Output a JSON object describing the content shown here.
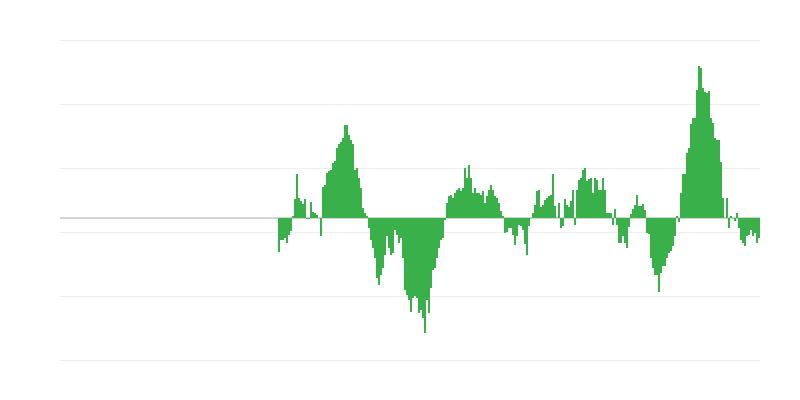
{
  "chart_data": {
    "type": "bar",
    "title": "",
    "xlabel": "",
    "ylabel": "",
    "ylim": [
      -142,
      178
    ],
    "gridlines": [
      178,
      114,
      50,
      -14,
      -78,
      -142
    ],
    "baseline": 0,
    "grid": true,
    "colors": {
      "bar": "#39b04a",
      "grid": "#eeeeee",
      "baseline": "#aaaaaa"
    },
    "values": [
      null,
      null,
      null,
      null,
      null,
      null,
      null,
      null,
      null,
      null,
      null,
      null,
      null,
      null,
      null,
      null,
      null,
      null,
      null,
      null,
      null,
      null,
      null,
      null,
      null,
      null,
      null,
      null,
      null,
      null,
      null,
      null,
      null,
      null,
      null,
      null,
      null,
      null,
      null,
      null,
      null,
      null,
      null,
      null,
      null,
      null,
      null,
      null,
      null,
      null,
      null,
      null,
      null,
      null,
      null,
      null,
      null,
      null,
      null,
      null,
      null,
      null,
      null,
      null,
      null,
      null,
      null,
      null,
      null,
      null,
      null,
      null,
      null,
      null,
      null,
      null,
      null,
      null,
      null,
      null,
      null,
      null,
      null,
      null,
      null,
      null,
      null,
      null,
      null,
      null,
      null,
      null,
      null,
      null,
      null,
      null,
      null,
      null,
      null,
      null,
      null,
      null,
      null,
      null,
      null,
      null,
      null,
      null,
      null,
      -34,
      -22,
      -22,
      -20,
      -25,
      -17,
      -13,
      2,
      19,
      44,
      20,
      17,
      14,
      19,
      -1,
      -1,
      16,
      6,
      5,
      3,
      0,
      -18,
      31,
      33,
      45,
      47,
      48,
      55,
      57,
      70,
      74,
      76,
      80,
      93,
      93,
      83,
      78,
      74,
      48,
      50,
      40,
      30,
      10,
      5,
      2,
      -10,
      -22,
      -30,
      -40,
      -60,
      -67,
      -57,
      -50,
      -37,
      -18,
      -30,
      -37,
      -35,
      -12,
      -17,
      -25,
      -20,
      -40,
      -72,
      -77,
      -82,
      -94,
      -80,
      -78,
      -80,
      -95,
      -92,
      -100,
      -115,
      -82,
      -95,
      -70,
      -52,
      -50,
      -40,
      -30,
      -22,
      -20,
      -2,
      15,
      22,
      23,
      20,
      25,
      28,
      30,
      27,
      30,
      50,
      40,
      53,
      40,
      25,
      30,
      25,
      25,
      23,
      27,
      15,
      22,
      28,
      33,
      28,
      22,
      20,
      15,
      7,
      2,
      -15,
      -14,
      -10,
      -10,
      -17,
      -27,
      -18,
      -7,
      -8,
      -12,
      -26,
      -37,
      -8,
      0,
      5,
      13,
      27,
      28,
      11,
      13,
      18,
      20,
      22,
      23,
      44,
      12,
      0,
      15,
      -10,
      -8,
      19,
      13,
      11,
      17,
      28,
      -7,
      28,
      38,
      40,
      48,
      50,
      37,
      39,
      40,
      25,
      40,
      38,
      28,
      28,
      40,
      28,
      5,
      5,
      5,
      -7,
      9,
      -7,
      -25,
      -25,
      -18,
      -25,
      -30,
      -9,
      4,
      9,
      13,
      23,
      12,
      12,
      14,
      8,
      -15,
      -16,
      -40,
      -50,
      -57,
      -57,
      -74,
      -55,
      -48,
      -48,
      -40,
      -35,
      -33,
      -28,
      -18,
      2,
      -4,
      25,
      44,
      44,
      65,
      70,
      94,
      100,
      100,
      128,
      152,
      150,
      130,
      126,
      125,
      127,
      100,
      95,
      80,
      78,
      78,
      56,
      20,
      0,
      20,
      -10,
      2,
      0,
      -3,
      5,
      -10,
      -22,
      -25,
      -28,
      -18,
      -17,
      -12,
      -18,
      -15,
      -25,
      -20
    ]
  }
}
